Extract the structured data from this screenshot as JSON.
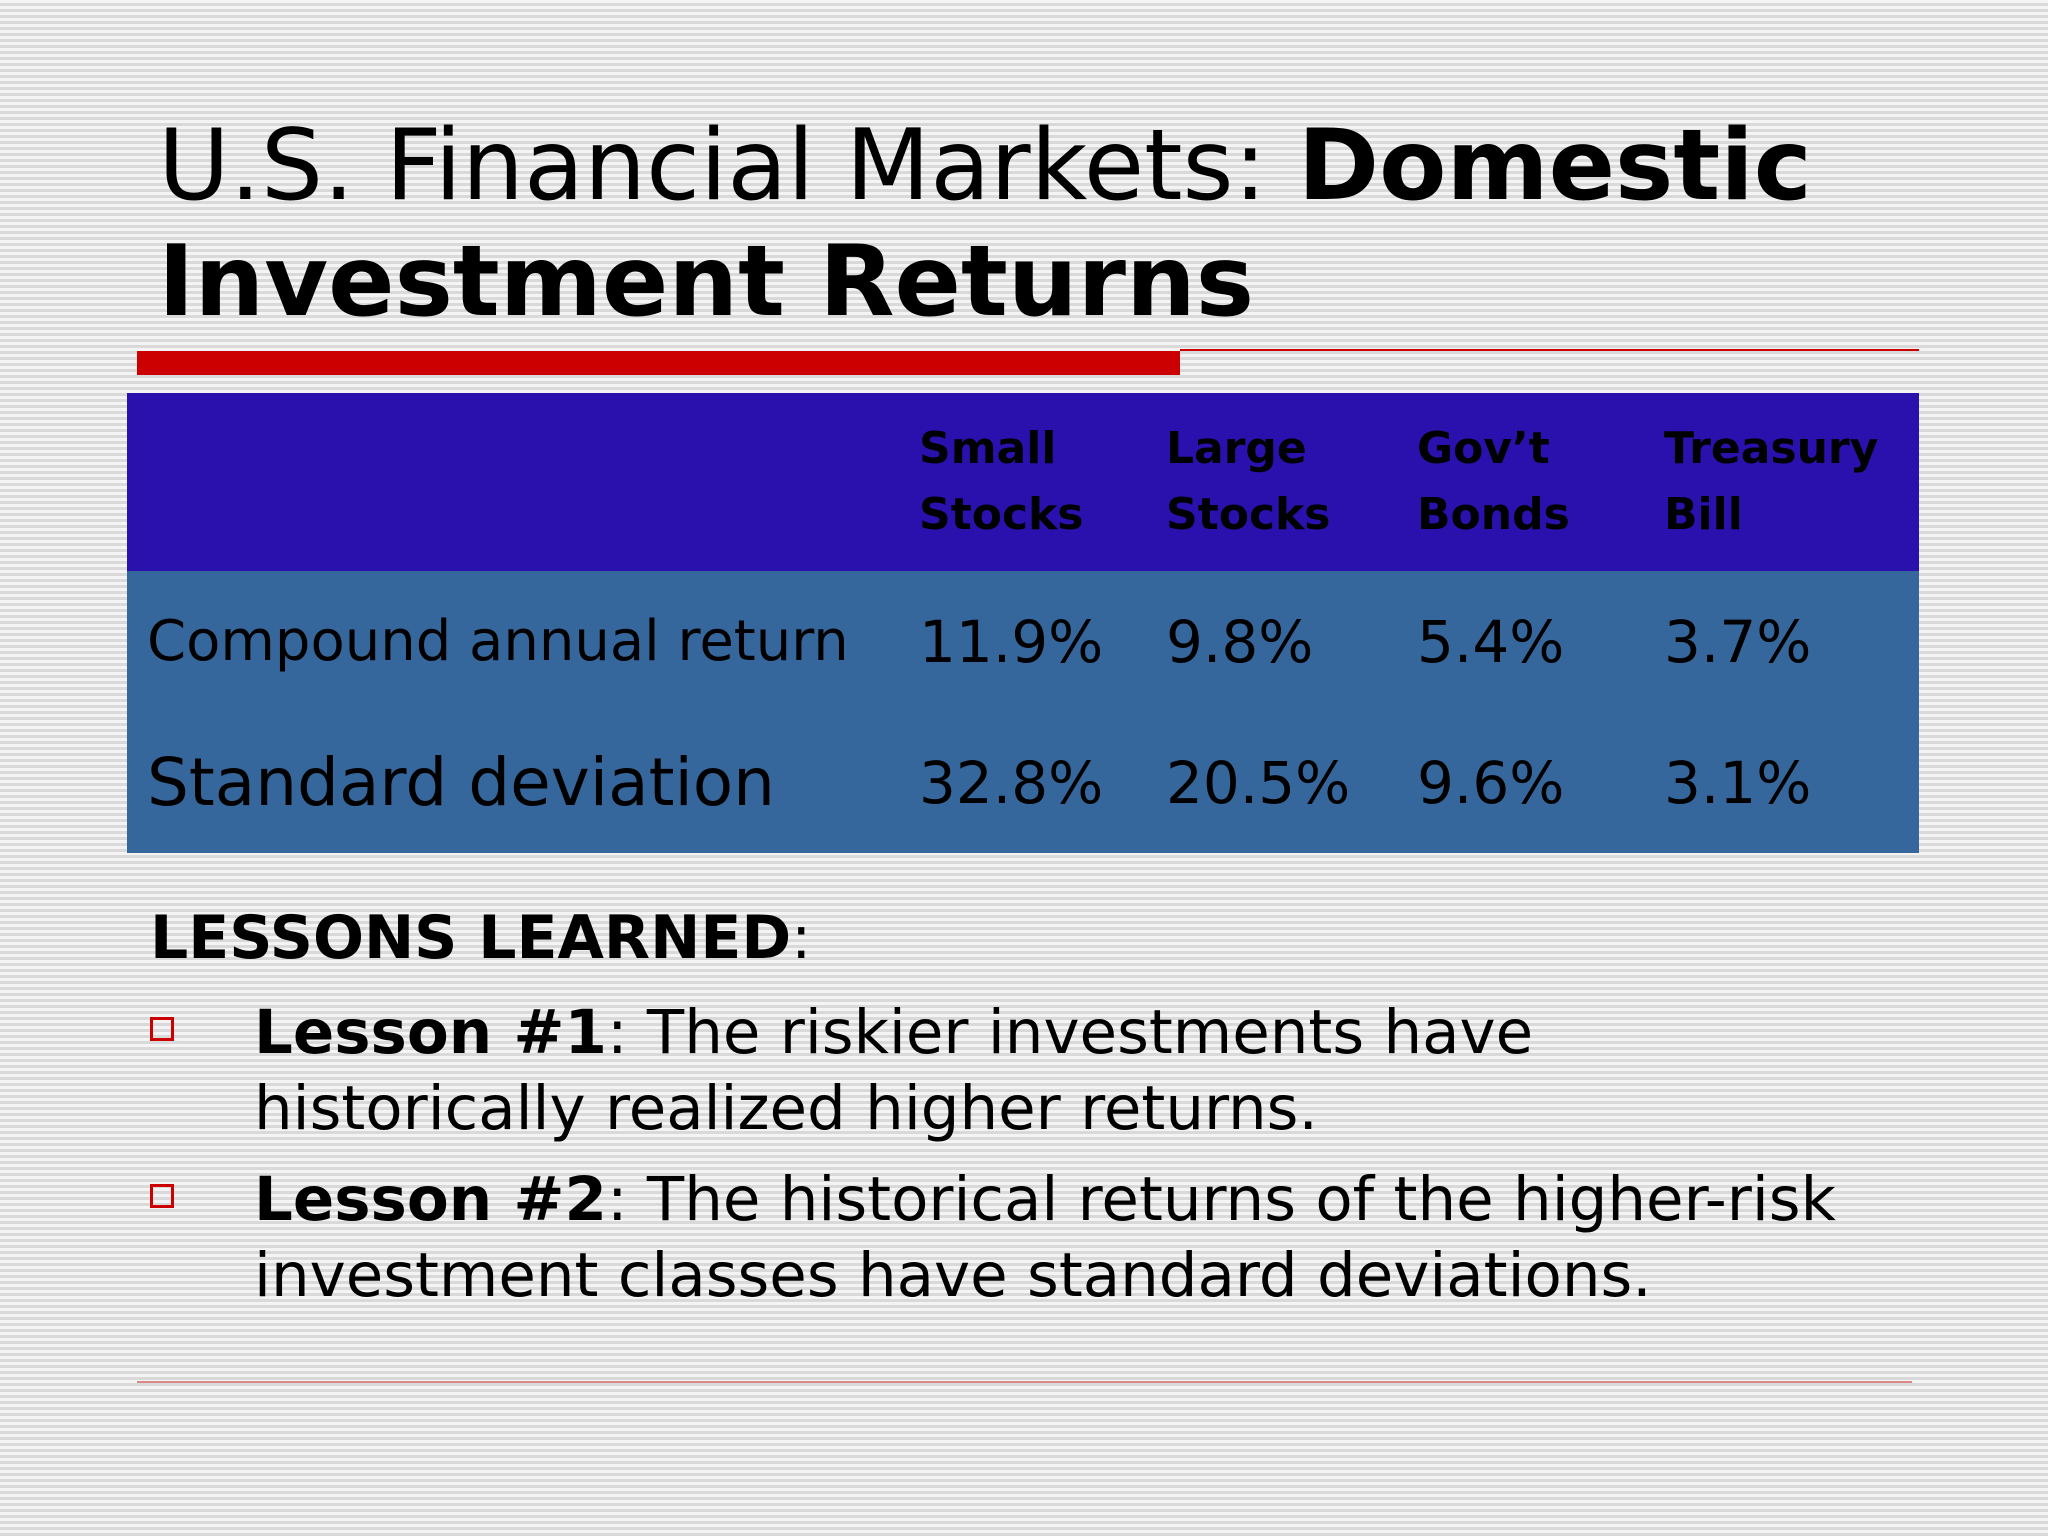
{
  "slide": {
    "title_normal": "U.S. Financial Markets: ",
    "title_bold": "Domestic Investment Returns",
    "table": {
      "columns": [
        "Small Stocks",
        "Large Stocks",
        "Gov’t Bonds",
        "Treasury Bill"
      ],
      "columns_lines": [
        [
          "Small",
          "Stocks"
        ],
        [
          "Large",
          "Stocks"
        ],
        [
          "Gov’t",
          "Bonds"
        ],
        [
          "Treasury",
          "Bill"
        ]
      ],
      "rows": [
        {
          "label": "Compound annual return",
          "values": [
            "11.9%",
            "9.8%",
            "5.4%",
            "3.7%"
          ]
        },
        {
          "label": "Standard deviation",
          "values": [
            "32.8%",
            "20.5%",
            "9.6%",
            "3.1%"
          ]
        }
      ]
    },
    "lessons": {
      "heading": "LESSONS LEARNED",
      "heading_suffix": ":",
      "items": [
        {
          "label": "Lesson #1",
          "text": ": The riskier investments have historically realized higher returns."
        },
        {
          "label": "Lesson #2",
          "text": ": The historical returns of the higher-risk investment classes have standard deviations."
        }
      ]
    },
    "colors": {
      "accent_red": "#cc0000",
      "header_blue": "#2a11ad",
      "body_blue": "#35669c"
    }
  }
}
